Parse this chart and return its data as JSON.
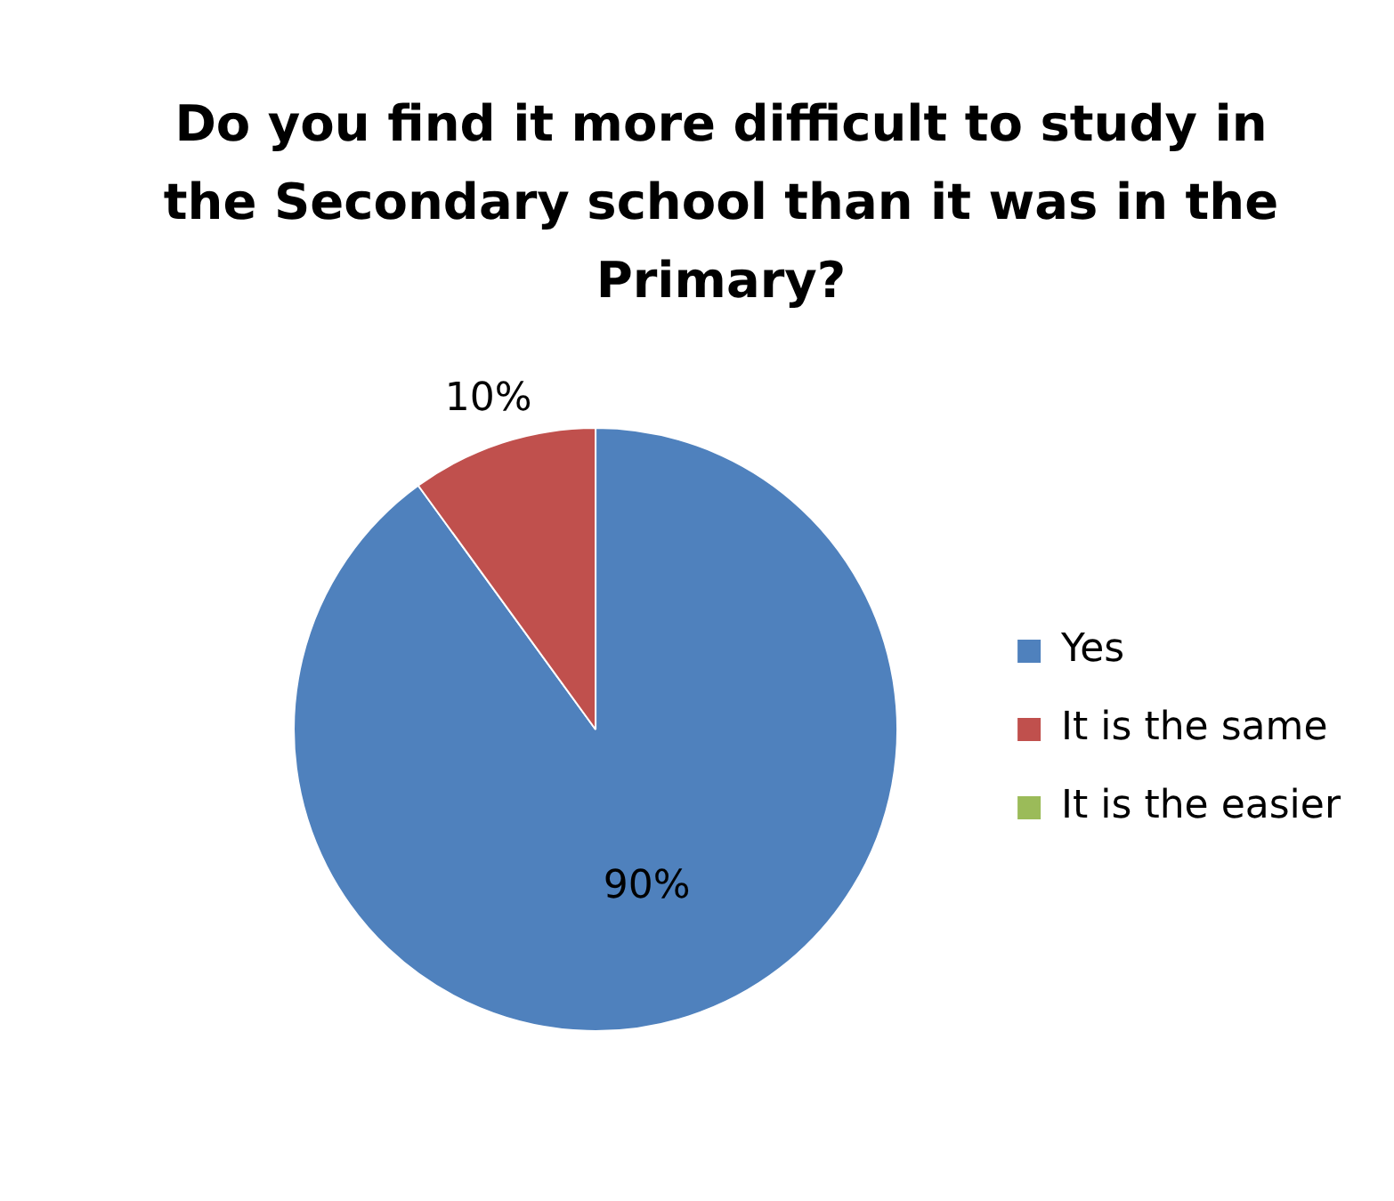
{
  "chart_data": {
    "type": "pie",
    "title": "Do you find it more difficult to study in the Secondary school than it was in the Primary?",
    "categories": [
      "Yes",
      "It is the same",
      "It is the easier"
    ],
    "values": [
      90,
      10,
      0
    ],
    "colors": [
      "#4f81bd",
      "#c0504d",
      "#9bbb59"
    ],
    "value_labels": [
      "90%",
      "10%",
      null
    ],
    "legend": "right"
  }
}
